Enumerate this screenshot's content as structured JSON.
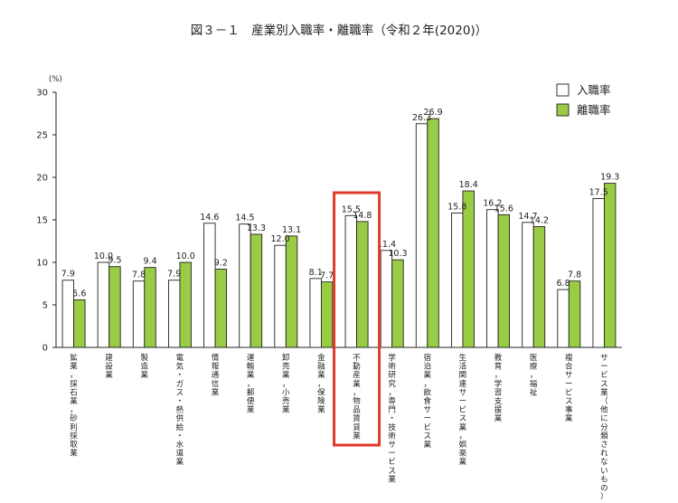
{
  "chart_data": {
    "type": "bar",
    "title": "図３－１　産業別入職率・離職率（令和２年(2020)）",
    "ylabel": "(%)",
    "ylim": [
      0,
      30
    ],
    "yticks": [
      0,
      5,
      10,
      15,
      20,
      25,
      30
    ],
    "legend_position": "top-right",
    "categories": [
      "鉱業，採石業，砂利採取業",
      "建設業",
      "製造業",
      "電気・ガス・熱供給・水道業",
      "情報通信業",
      "運輸業，郵便業",
      "卸売業，小売業",
      "金融業，保険業",
      "不動産業，物品賃貸業",
      "学術研究，専門・技術サービス業",
      "宿泊業，飲食サービス業",
      "生活関連サービス業，娯楽業",
      "教育，学習支援業",
      "医療，福祉",
      "複合サービス事業",
      "サービス業（他に分類されないもの）"
    ],
    "series": [
      {
        "name": "入職率",
        "color": "#ffffff",
        "values": [
          7.9,
          10.0,
          7.8,
          7.9,
          14.6,
          14.5,
          12.0,
          8.1,
          15.5,
          11.4,
          26.3,
          15.8,
          16.2,
          14.7,
          6.8,
          17.5
        ]
      },
      {
        "name": "離職率",
        "color": "#99cc44",
        "values": [
          5.6,
          9.5,
          9.4,
          10.0,
          9.2,
          13.3,
          13.1,
          7.7,
          14.8,
          10.3,
          26.9,
          18.4,
          15.6,
          14.2,
          7.8,
          19.3
        ]
      }
    ],
    "highlight_category": "不動産業，物品賃貸業",
    "highlight_color": "#e03a2a"
  }
}
